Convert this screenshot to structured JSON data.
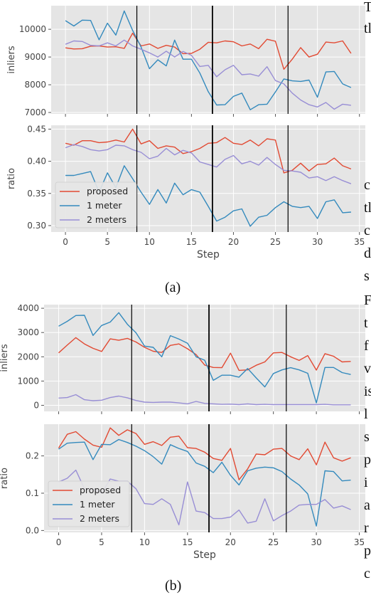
{
  "figure": {
    "caption_a": "(a)",
    "caption_b": "(b)",
    "side_text_fragments": [
      "T",
      "tl",
      "c",
      "tl",
      "c",
      "d",
      "s",
      "F",
      "t",
      "f",
      "v",
      "is",
      "l",
      "s",
      "p",
      "i",
      "a",
      "r",
      "p",
      "c"
    ]
  },
  "colors": {
    "proposed": "#e24a33",
    "one_meter": "#348abd",
    "two_meters": "#988ed5",
    "grid_bg": "#e5e5e5",
    "vline": "#000000"
  },
  "chart_data": [
    {
      "panel": "a",
      "type": "line",
      "ylabel": "inliers",
      "xlabel": "",
      "ylim": [
        6950,
        10850
      ],
      "yticks": [
        7000,
        8000,
        9000,
        10000
      ],
      "xlim": [
        -1.7,
        35.7
      ],
      "xticks": [
        0,
        5,
        10,
        15,
        20,
        25,
        30,
        35
      ],
      "show_xticklabels": false,
      "grid": true,
      "vlines": [
        8.5,
        17.5,
        26.5
      ],
      "x": [
        0,
        1,
        2,
        3,
        4,
        5,
        6,
        7,
        8,
        9,
        10,
        11,
        12,
        13,
        14,
        15,
        16,
        17,
        18,
        19,
        20,
        21,
        22,
        23,
        24,
        25,
        26,
        27,
        28,
        29,
        30,
        31,
        32,
        33,
        34
      ],
      "series": [
        {
          "name": "proposed",
          "color": "#e24a33",
          "values": [
            9330,
            9290,
            9300,
            9390,
            9400,
            9360,
            9370,
            9310,
            9860,
            9400,
            9470,
            9310,
            9420,
            9360,
            9120,
            9130,
            9280,
            9530,
            9510,
            9580,
            9550,
            9400,
            9470,
            9300,
            9640,
            9570,
            8560,
            8920,
            9340,
            9000,
            9100,
            9540,
            9510,
            9580,
            9130
          ]
        },
        {
          "name": "1 meter",
          "color": "#348abd",
          "values": [
            10310,
            10120,
            10330,
            10320,
            9620,
            10220,
            9790,
            10660,
            9960,
            9360,
            8580,
            8900,
            8680,
            9610,
            8920,
            8920,
            8420,
            7750,
            7270,
            7280,
            7580,
            7700,
            7100,
            7280,
            7300,
            7740,
            8210,
            8140,
            8120,
            8170,
            7550,
            8460,
            8480,
            8030,
            7900
          ]
        },
        {
          "name": "2 meters",
          "color": "#988ed5",
          "values": [
            9460,
            9580,
            9560,
            9420,
            9400,
            9510,
            9400,
            9610,
            9400,
            9280,
            9150,
            9000,
            9210,
            9000,
            9200,
            9060,
            8660,
            8700,
            8290,
            8540,
            8700,
            8360,
            8390,
            8310,
            8650,
            8150,
            8030,
            7700,
            7450,
            7280,
            7200,
            7360,
            7120,
            7300,
            7260
          ]
        }
      ]
    },
    {
      "panel": "a",
      "type": "line",
      "ylabel": "ratio",
      "xlabel": "Step",
      "ylim": [
        0.29,
        0.456
      ],
      "yticks": [
        0.3,
        0.35,
        0.4,
        0.45
      ],
      "ytick_labels": [
        "0.30",
        "0.35",
        "0.40",
        "0.45"
      ],
      "xlim": [
        -1.7,
        35.7
      ],
      "xticks": [
        0,
        5,
        10,
        15,
        20,
        25,
        30,
        35
      ],
      "show_xticklabels": true,
      "grid": true,
      "legend": "lower-left",
      "vlines": [
        8.5,
        17.5,
        26.5
      ],
      "x": [
        0,
        1,
        2,
        3,
        4,
        5,
        6,
        7,
        8,
        9,
        10,
        11,
        12,
        13,
        14,
        15,
        16,
        17,
        18,
        19,
        20,
        21,
        22,
        23,
        24,
        25,
        26,
        27,
        28,
        29,
        30,
        31,
        32,
        33,
        34
      ],
      "series": [
        {
          "name": "proposed",
          "color": "#e24a33",
          "values": [
            0.428,
            0.425,
            0.432,
            0.432,
            0.429,
            0.43,
            0.433,
            0.43,
            0.45,
            0.427,
            0.432,
            0.42,
            0.424,
            0.422,
            0.412,
            0.415,
            0.42,
            0.428,
            0.429,
            0.437,
            0.428,
            0.426,
            0.433,
            0.424,
            0.435,
            0.433,
            0.382,
            0.386,
            0.397,
            0.385,
            0.395,
            0.396,
            0.405,
            0.393,
            0.388
          ]
        },
        {
          "name": "1 meter",
          "color": "#348abd",
          "values": [
            0.378,
            0.378,
            0.381,
            0.384,
            0.352,
            0.382,
            0.359,
            0.393,
            0.373,
            0.352,
            0.333,
            0.356,
            0.335,
            0.366,
            0.348,
            0.356,
            0.352,
            0.33,
            0.307,
            0.313,
            0.323,
            0.326,
            0.299,
            0.313,
            0.316,
            0.328,
            0.337,
            0.33,
            0.328,
            0.33,
            0.311,
            0.337,
            0.34,
            0.32,
            0.321
          ]
        },
        {
          "name": "2 meters",
          "color": "#988ed5",
          "values": [
            0.421,
            0.426,
            0.423,
            0.418,
            0.416,
            0.418,
            0.425,
            0.424,
            0.418,
            0.414,
            0.404,
            0.408,
            0.42,
            0.41,
            0.417,
            0.413,
            0.399,
            0.395,
            0.391,
            0.403,
            0.409,
            0.396,
            0.4,
            0.394,
            0.406,
            0.395,
            0.386,
            0.385,
            0.383,
            0.374,
            0.376,
            0.37,
            0.376,
            0.37,
            0.365
          ]
        }
      ]
    },
    {
      "panel": "b",
      "type": "line",
      "ylabel": "inliers",
      "xlabel": "",
      "ylim": [
        -250,
        4150
      ],
      "yticks": [
        0,
        1000,
        2000,
        3000,
        4000
      ],
      "xlim": [
        -1.7,
        35.7
      ],
      "xticks": [
        0,
        5,
        10,
        15,
        20,
        25,
        30,
        35
      ],
      "show_xticklabels": false,
      "grid": true,
      "vlines": [
        8.5,
        17.5,
        26.5
      ],
      "x": [
        0,
        1,
        2,
        3,
        4,
        5,
        6,
        7,
        8,
        9,
        10,
        11,
        12,
        13,
        14,
        15,
        16,
        17,
        18,
        19,
        20,
        21,
        22,
        23,
        24,
        25,
        26,
        27,
        28,
        29,
        30,
        31,
        32,
        33,
        34
      ],
      "series": [
        {
          "name": "proposed",
          "color": "#e24a33",
          "values": [
            2160,
            2480,
            2790,
            2530,
            2350,
            2220,
            2740,
            2680,
            2760,
            2610,
            2390,
            2230,
            2180,
            2470,
            2530,
            2330,
            2090,
            1660,
            1560,
            1550,
            2150,
            1440,
            1460,
            1650,
            1790,
            2160,
            2180,
            2000,
            1850,
            2050,
            1450,
            2130,
            2020,
            1790,
            1810
          ]
        },
        {
          "name": "1 meter",
          "color": "#348abd",
          "values": [
            3260,
            3460,
            3700,
            3710,
            2880,
            3290,
            3430,
            3820,
            3340,
            2990,
            2440,
            2390,
            2000,
            2870,
            2730,
            2560,
            2000,
            1860,
            1030,
            1240,
            1240,
            1160,
            1520,
            1130,
            760,
            1310,
            1460,
            1550,
            1460,
            1320,
            100,
            1560,
            1560,
            1350,
            1270
          ]
        },
        {
          "name": "2 meters",
          "color": "#988ed5",
          "values": [
            300,
            320,
            440,
            230,
            190,
            210,
            320,
            380,
            310,
            200,
            130,
            120,
            130,
            130,
            100,
            60,
            160,
            80,
            60,
            40,
            50,
            30,
            60,
            30,
            40,
            30,
            30,
            30,
            30,
            30,
            30,
            40,
            20,
            20,
            20
          ]
        }
      ]
    },
    {
      "panel": "b",
      "type": "line",
      "ylabel": "ratio",
      "xlabel": "Step",
      "ylim": [
        -0.005,
        0.285
      ],
      "yticks": [
        0.0,
        0.1,
        0.2
      ],
      "ytick_labels": [
        "0.0",
        "0.1",
        "0.2"
      ],
      "xlim": [
        -1.7,
        35.7
      ],
      "xticks": [
        0,
        5,
        10,
        15,
        20,
        25,
        30,
        35
      ],
      "show_xticklabels": true,
      "grid": true,
      "legend": "lower-left",
      "vlines": [
        8.5,
        17.5,
        26.5
      ],
      "x": [
        0,
        1,
        2,
        3,
        4,
        5,
        6,
        7,
        8,
        9,
        10,
        11,
        12,
        13,
        14,
        15,
        16,
        17,
        18,
        19,
        20,
        21,
        22,
        23,
        24,
        25,
        26,
        27,
        28,
        29,
        30,
        31,
        32,
        33,
        34
      ],
      "series": [
        {
          "name": "proposed",
          "color": "#e24a33",
          "values": [
            0.221,
            0.258,
            0.265,
            0.245,
            0.229,
            0.223,
            0.275,
            0.255,
            0.27,
            0.26,
            0.231,
            0.238,
            0.228,
            0.25,
            0.253,
            0.222,
            0.22,
            0.21,
            0.193,
            0.188,
            0.22,
            0.136,
            0.165,
            0.205,
            0.203,
            0.218,
            0.22,
            0.2,
            0.19,
            0.219,
            0.176,
            0.237,
            0.195,
            0.186,
            0.195
          ]
        },
        {
          "name": "1 meter",
          "color": "#348abd",
          "values": [
            0.218,
            0.234,
            0.236,
            0.237,
            0.19,
            0.231,
            0.23,
            0.244,
            0.236,
            0.226,
            0.214,
            0.198,
            0.178,
            0.23,
            0.22,
            0.212,
            0.181,
            0.172,
            0.155,
            0.183,
            0.148,
            0.122,
            0.16,
            0.167,
            0.17,
            0.168,
            0.158,
            0.138,
            0.122,
            0.098,
            0.012,
            0.16,
            0.158,
            0.133,
            0.135
          ]
        },
        {
          "name": "2 meters",
          "color": "#988ed5",
          "values": [
            0.13,
            0.14,
            0.162,
            0.112,
            0.11,
            0.1,
            0.138,
            0.132,
            0.132,
            0.112,
            0.072,
            0.07,
            0.085,
            0.07,
            0.015,
            0.13,
            0.052,
            0.048,
            0.032,
            0.032,
            0.036,
            0.055,
            0.02,
            0.025,
            0.085,
            0.026,
            0.04,
            0.052,
            0.068,
            0.07,
            0.07,
            0.083,
            0.06,
            0.066,
            0.056
          ]
        }
      ]
    }
  ]
}
